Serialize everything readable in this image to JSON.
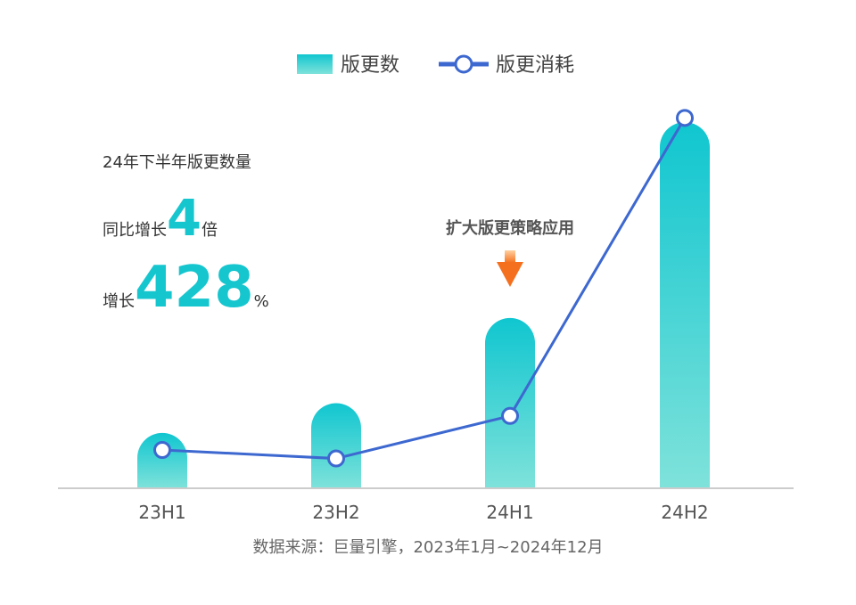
{
  "chart_data": {
    "type": "bar",
    "categories": [
      "23H1",
      "23H2",
      "24H1",
      "24H2"
    ],
    "series": [
      {
        "name": "版更数",
        "type": "bar",
        "values": [
          13,
          20,
          40,
          86
        ]
      },
      {
        "name": "版更消耗",
        "type": "line",
        "values": [
          9,
          7,
          17,
          87
        ]
      }
    ],
    "ylim": [
      0,
      90
    ],
    "grid": false,
    "legend_position": "top-center"
  },
  "annotations": {
    "title": "24年下半年版更数量",
    "yoy_prefix": "同比增长",
    "yoy_value": "4",
    "yoy_suffix": "倍",
    "growth_prefix": "增长",
    "growth_value": "428",
    "growth_suffix": "%",
    "callout": "扩大版更策略应用"
  },
  "source": "数据来源：巨量引擎，2023年1月~2024年12月",
  "colors": {
    "bar_top": "#10c6d0",
    "bar_bottom": "#7fe2da",
    "line": "#3d68d0",
    "accent": "#16c6cf",
    "arrow_top": "#ffd0a0",
    "arrow_bottom": "#f5701e",
    "axis": "#cccccc"
  }
}
